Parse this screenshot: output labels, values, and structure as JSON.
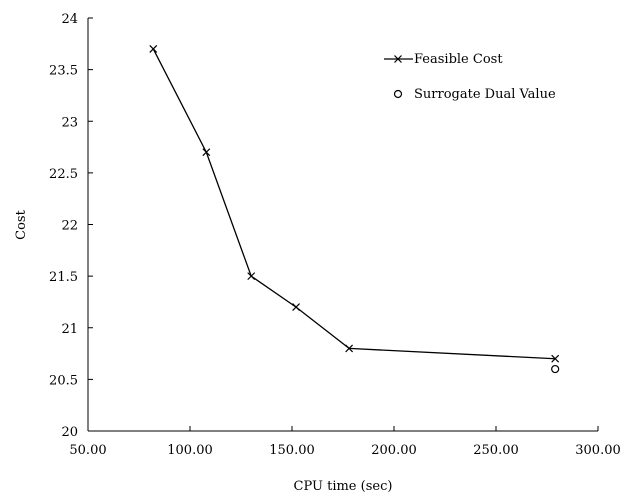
{
  "chart_data": {
    "type": "line",
    "xlabel": "CPU time (sec)",
    "ylabel": "Cost",
    "xlim": [
      50,
      300
    ],
    "ylim": [
      20,
      24
    ],
    "x_ticks": [
      "50.00",
      "100.00",
      "150.00",
      "200.00",
      "250.00",
      "300.00"
    ],
    "y_ticks": [
      "20",
      "20.5",
      "21",
      "21.5",
      "22",
      "22.5",
      "23",
      "23.5",
      "24"
    ],
    "grid": false,
    "legend_position": "top-right",
    "series": [
      {
        "name": "Feasible Cost",
        "marker": "x",
        "line": true,
        "color": "#000000",
        "points": [
          {
            "x": 82,
            "y": 23.7
          },
          {
            "x": 108,
            "y": 22.7
          },
          {
            "x": 130,
            "y": 21.5
          },
          {
            "x": 152,
            "y": 21.2
          },
          {
            "x": 178,
            "y": 20.8
          },
          {
            "x": 279,
            "y": 20.7
          }
        ]
      },
      {
        "name": "Surrogate Dual Value",
        "marker": "o",
        "line": false,
        "color": "#000000",
        "points": [
          {
            "x": 279,
            "y": 20.6
          }
        ]
      }
    ]
  }
}
